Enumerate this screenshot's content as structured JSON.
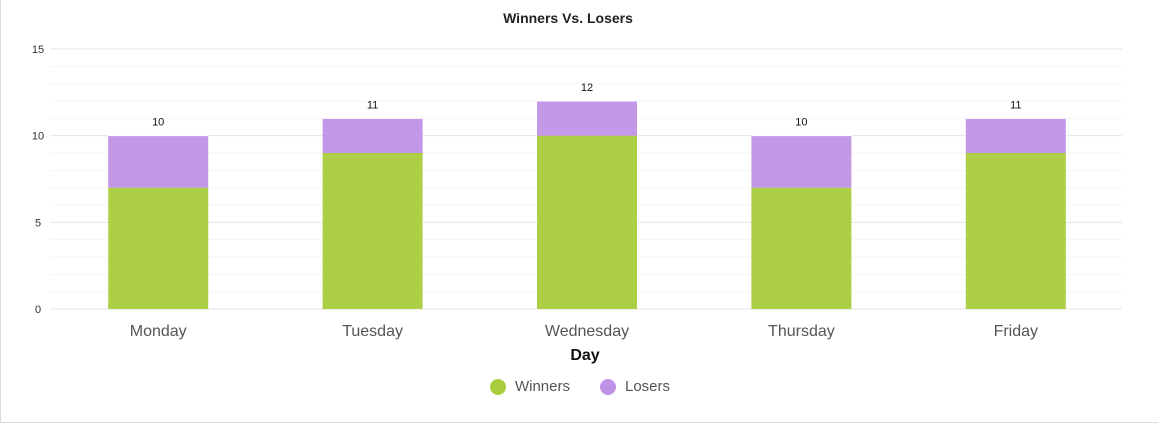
{
  "colors": {
    "winners": "#a8cc3c",
    "losers": "#bf92e6"
  },
  "chart_data": {
    "type": "bar",
    "stacked": true,
    "title": "Winners Vs. Losers",
    "xlabel": "Day",
    "ylabel": "",
    "ylim": [
      0,
      15
    ],
    "yticks": [
      "0",
      "5",
      "10",
      "15"
    ],
    "grid": true,
    "legend_position": "bottom",
    "categories": [
      "Monday",
      "Tuesday",
      "Wednesday",
      "Thursday",
      "Friday"
    ],
    "series": [
      {
        "name": "Winners",
        "values": [
          7,
          9,
          10,
          7,
          9
        ]
      },
      {
        "name": "Losers",
        "values": [
          3,
          2,
          2,
          3,
          2
        ]
      }
    ],
    "totals": [
      "10",
      "11",
      "12",
      "10",
      "11"
    ]
  }
}
